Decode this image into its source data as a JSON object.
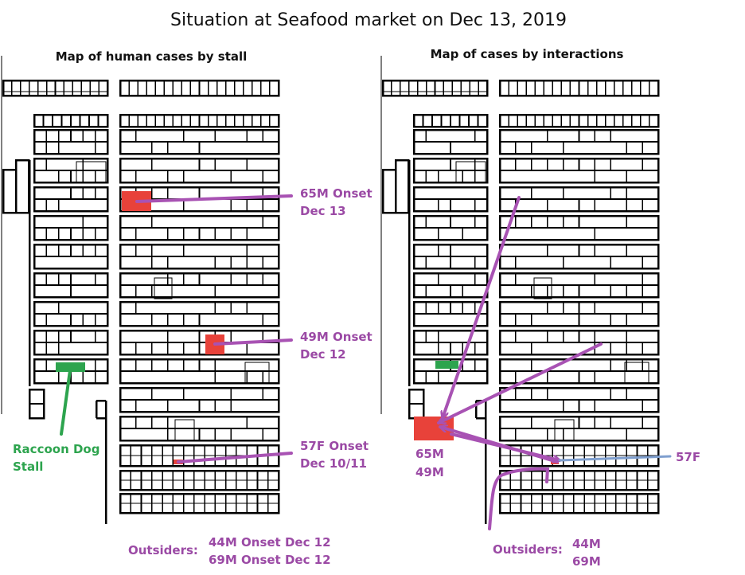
{
  "title": "Situation at Seafood market on Dec 13, 2019",
  "left_map": {
    "subtitle": "Map of human cases by stall",
    "cases": [
      {
        "line1": "65M Onset",
        "line2": "Dec 13"
      },
      {
        "line1": "49M Onset",
        "line2": "Dec 12"
      },
      {
        "line1": "57F Onset",
        "line2": "Dec 10/11"
      }
    ],
    "raccoon": {
      "line1": "Raccoon Dog",
      "line2": "Stall"
    },
    "outsiders_label": "Outsiders:",
    "outsiders": [
      "44M Onset Dec 12",
      "69M Onset Dec 12"
    ]
  },
  "right_map": {
    "subtitle": "Map of cases by interactions",
    "cluster": [
      "65M",
      "49M"
    ],
    "case_57f": "57F",
    "outsiders_label": "Outsiders:",
    "outsiders": [
      "44M",
      "69M"
    ]
  },
  "colors": {
    "case_stall": "#e8423a",
    "raccoon_stall": "#2da44e",
    "arrow": "#a852b3",
    "label": "#9b4aa5",
    "line_57f": "#7f9fcf",
    "grid": "#000000"
  }
}
